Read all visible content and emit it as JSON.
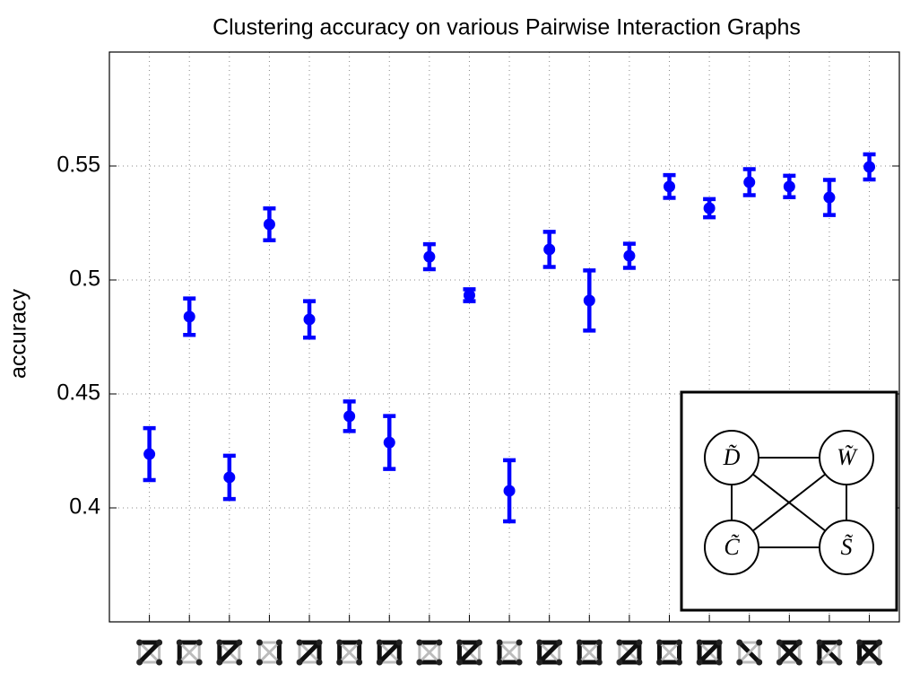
{
  "chart_data": {
    "type": "errorbar",
    "title": "Clustering accuracy on various Pairwise Interaction Graphs",
    "ylabel": "accuracy",
    "x": [
      1,
      2,
      3,
      4,
      5,
      6,
      7,
      8,
      9,
      10,
      11,
      12,
      13,
      14,
      15,
      16,
      17,
      18,
      19
    ],
    "series": [
      {
        "color": "#0000ff",
        "values": [
          0.4236,
          0.4839,
          0.4134,
          0.5244,
          0.4827,
          0.4402,
          0.4287,
          0.5102,
          0.4933,
          0.4075,
          0.5134,
          0.491,
          0.5106,
          0.541,
          0.5315,
          0.5429,
          0.541,
          0.5362,
          0.5496
        ],
        "errors": [
          0.0114,
          0.008,
          0.0095,
          0.007,
          0.008,
          0.0065,
          0.0116,
          0.0055,
          0.0026,
          0.0134,
          0.0077,
          0.0132,
          0.0053,
          0.005,
          0.004,
          0.0057,
          0.0047,
          0.0077,
          0.0055
        ]
      }
    ],
    "xlim": [
      0,
      19.75
    ],
    "xticks": [
      1,
      2,
      3,
      4,
      5,
      6,
      7,
      8,
      9,
      10,
      11,
      12,
      13,
      14,
      15,
      16,
      17,
      18,
      19
    ],
    "ylim": [
      0.35,
      0.6
    ],
    "yticks": [
      0.4,
      0.45,
      0.5,
      0.55
    ],
    "grid": true,
    "inset_nodes": [
      "D̃",
      "W̃",
      "C̃",
      "S̃"
    ]
  }
}
